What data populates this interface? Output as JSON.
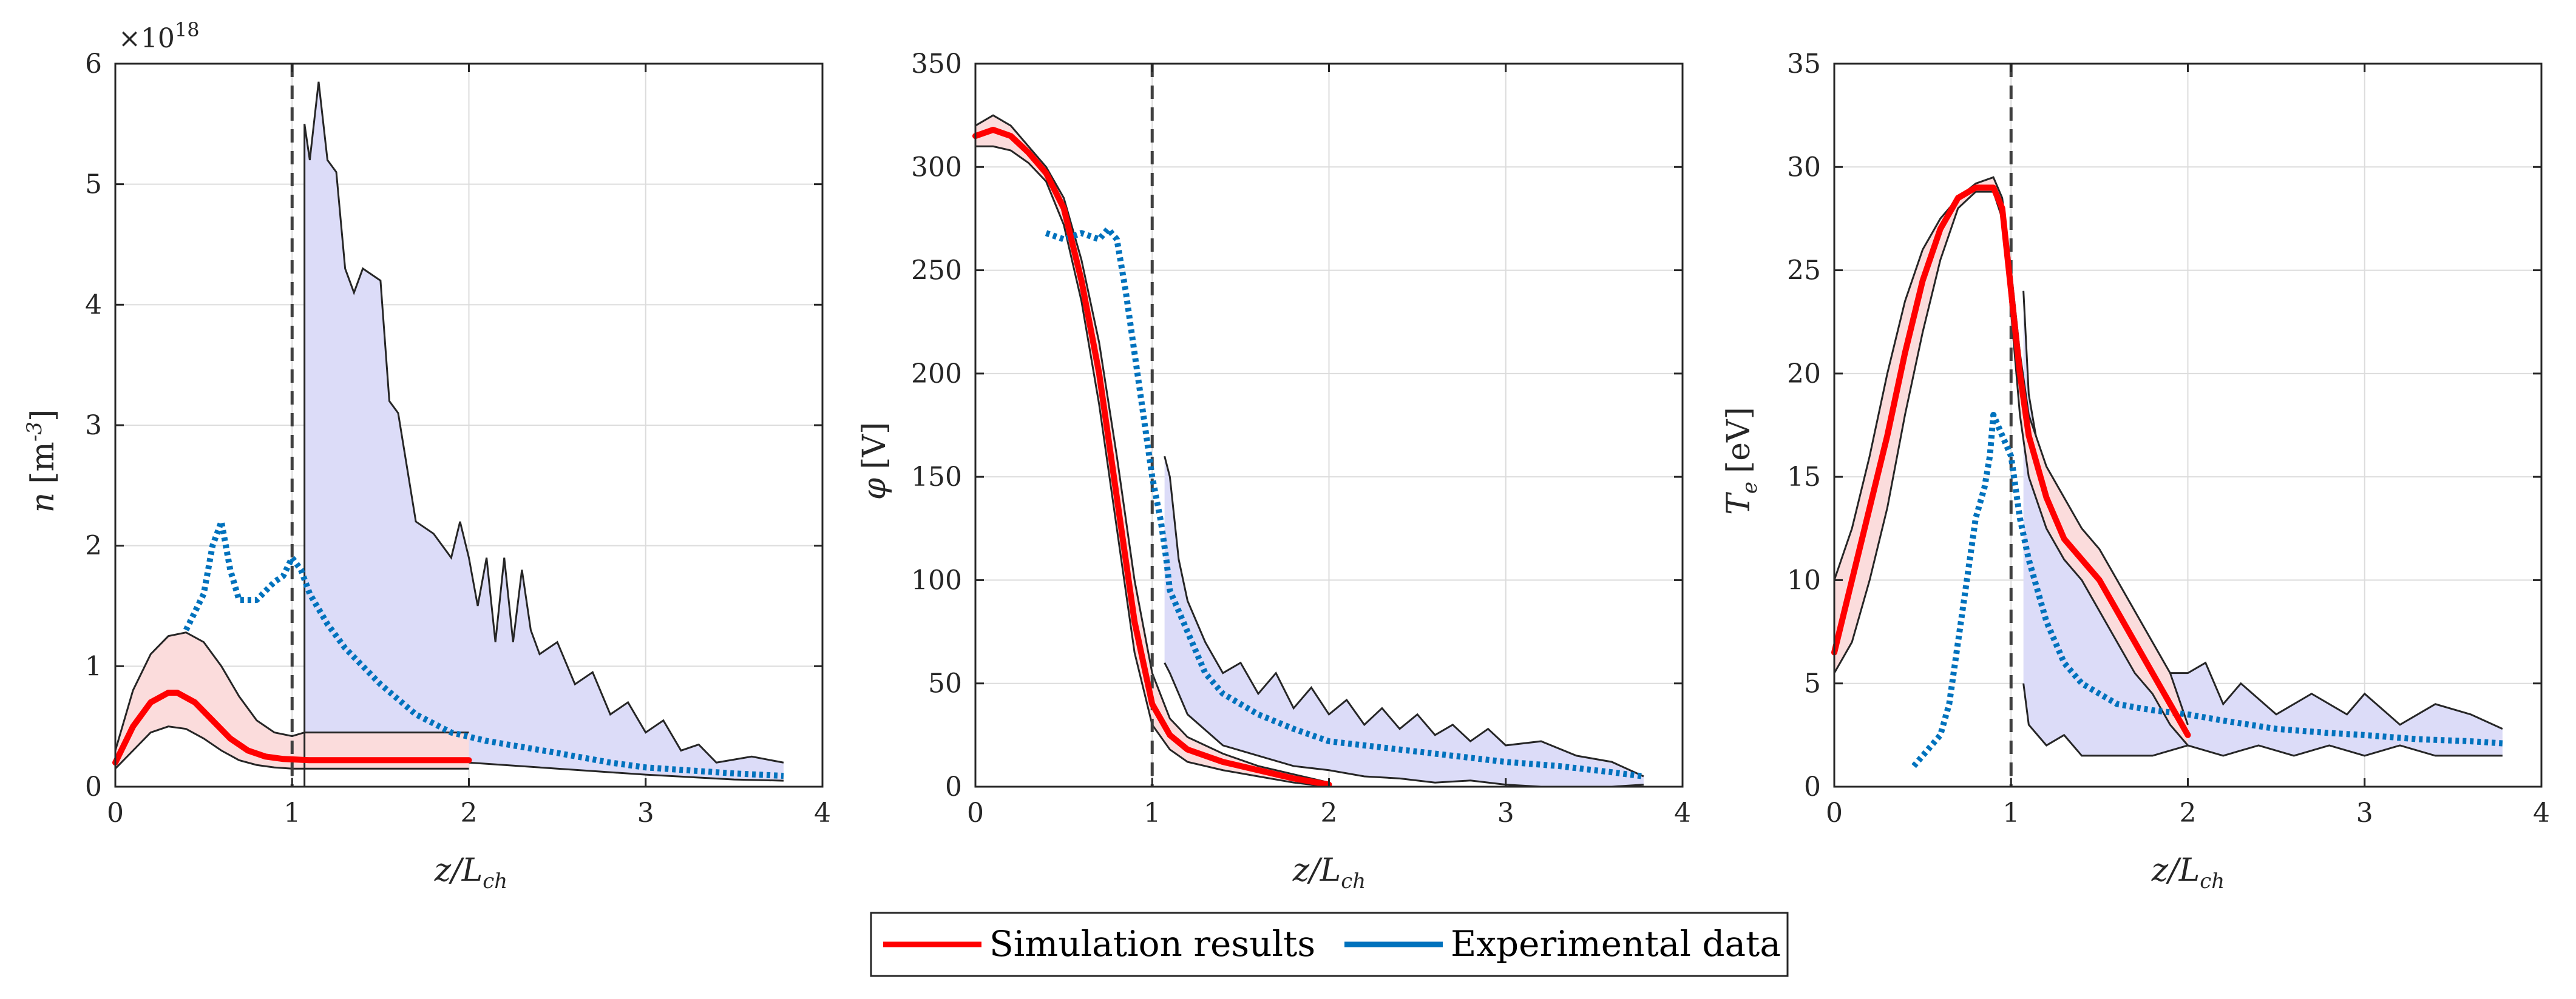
{
  "legend": {
    "sim_label": "Simulation results",
    "exp_label": "Experimental data"
  },
  "colors": {
    "sim": "#ff0000",
    "exp": "#0072bd",
    "sim_band": "#fbdcdc",
    "exp_band": "#dcdcf8",
    "vline": "#404040"
  },
  "chart_data": [
    {
      "type": "line",
      "ylabel_var": "n",
      "ylabel_unit": "[m",
      "ylabel_exp": "-3",
      "ylabel_close": "]",
      "xlabel": "z/L",
      "xlabel_sub": "ch",
      "exponent_prefix": "×10",
      "exponent_power": "18",
      "xlim": [
        0,
        4
      ],
      "ylim": [
        0,
        6
      ],
      "xticks": [
        0,
        1,
        2,
        3,
        4
      ],
      "yticks": [
        0,
        1,
        2,
        3,
        4,
        5,
        6
      ],
      "vline_x": 1,
      "exp_vline_x": 1.07,
      "series": [
        {
          "name": "Simulation results",
          "x": [
            0,
            0.1,
            0.2,
            0.3,
            0.35,
            0.45,
            0.55,
            0.65,
            0.75,
            0.85,
            0.95,
            1.1,
            1.3,
            1.5,
            1.7,
            2.0
          ],
          "y": [
            0.2,
            0.5,
            0.7,
            0.78,
            0.78,
            0.7,
            0.55,
            0.4,
            0.3,
            0.25,
            0.23,
            0.22,
            0.22,
            0.22,
            0.22,
            0.22
          ]
        },
        {
          "name": "Simulation band upper",
          "x": [
            0,
            0.1,
            0.2,
            0.3,
            0.4,
            0.5,
            0.6,
            0.7,
            0.8,
            0.9,
            1.0,
            1.07,
            1.5,
            2.0
          ],
          "y": [
            0.3,
            0.8,
            1.1,
            1.25,
            1.28,
            1.2,
            1.0,
            0.75,
            0.55,
            0.45,
            0.42,
            0.45,
            0.45,
            0.45
          ]
        },
        {
          "name": "Simulation band lower",
          "x": [
            0,
            0.1,
            0.2,
            0.3,
            0.4,
            0.5,
            0.6,
            0.7,
            0.8,
            0.9,
            1.0,
            1.5,
            2.0
          ],
          "y": [
            0.15,
            0.3,
            0.45,
            0.5,
            0.48,
            0.4,
            0.3,
            0.22,
            0.18,
            0.16,
            0.15,
            0.15,
            0.15
          ]
        },
        {
          "name": "Experimental data",
          "x": [
            0.4,
            0.5,
            0.55,
            0.6,
            0.65,
            0.7,
            0.8,
            0.9,
            0.95,
            1.0,
            1.05,
            1.1,
            1.2,
            1.3,
            1.5,
            1.7,
            1.9,
            2.1,
            2.3,
            2.5,
            2.8,
            3.0,
            3.3,
            3.5,
            3.78
          ],
          "y": [
            1.3,
            1.6,
            2.0,
            2.2,
            1.8,
            1.55,
            1.55,
            1.7,
            1.75,
            1.9,
            1.8,
            1.6,
            1.35,
            1.15,
            0.85,
            0.6,
            0.45,
            0.38,
            0.33,
            0.28,
            0.2,
            0.16,
            0.13,
            0.11,
            0.09
          ]
        },
        {
          "name": "Experimental band upper",
          "x": [
            1.07,
            1.1,
            1.15,
            1.2,
            1.25,
            1.3,
            1.35,
            1.4,
            1.5,
            1.55,
            1.6,
            1.7,
            1.8,
            1.9,
            1.95,
            2.0,
            2.05,
            2.1,
            2.15,
            2.2,
            2.25,
            2.3,
            2.35,
            2.4,
            2.5,
            2.6,
            2.7,
            2.8,
            2.9,
            3.0,
            3.1,
            3.2,
            3.3,
            3.4,
            3.6,
            3.78
          ],
          "y": [
            5.5,
            5.2,
            5.85,
            5.2,
            5.1,
            4.3,
            4.1,
            4.3,
            4.2,
            3.2,
            3.1,
            2.2,
            2.1,
            1.9,
            2.2,
            1.9,
            1.5,
            1.9,
            1.2,
            1.9,
            1.2,
            1.8,
            1.3,
            1.1,
            1.2,
            0.85,
            0.95,
            0.6,
            0.7,
            0.45,
            0.55,
            0.3,
            0.35,
            0.2,
            0.25,
            0.2
          ]
        },
        {
          "name": "Experimental band lower",
          "x": [
            1.07,
            1.5,
            2.0,
            2.5,
            3.0,
            3.5,
            3.78
          ],
          "y": [
            0.3,
            0.25,
            0.2,
            0.15,
            0.1,
            0.06,
            0.05
          ]
        }
      ]
    },
    {
      "type": "line",
      "ylabel_var": "φ",
      "ylabel_unit": "[V]",
      "xlabel": "z/L",
      "xlabel_sub": "ch",
      "xlim": [
        0,
        4
      ],
      "ylim": [
        0,
        350
      ],
      "xticks": [
        0,
        1,
        2,
        3,
        4
      ],
      "yticks": [
        0,
        50,
        100,
        150,
        200,
        250,
        300,
        350
      ],
      "vline_x": 1,
      "series": [
        {
          "name": "Simulation results",
          "x": [
            0,
            0.1,
            0.2,
            0.3,
            0.4,
            0.5,
            0.6,
            0.7,
            0.8,
            0.9,
            1.0,
            1.1,
            1.2,
            1.4,
            1.6,
            1.8,
            2.0
          ],
          "y": [
            315,
            318,
            315,
            307,
            297,
            280,
            245,
            200,
            140,
            80,
            40,
            25,
            18,
            12,
            8,
            4,
            1
          ]
        },
        {
          "name": "Simulation band upper",
          "x": [
            0,
            0.1,
            0.2,
            0.3,
            0.4,
            0.5,
            0.6,
            0.7,
            0.8,
            0.9,
            1.0,
            1.1,
            1.2,
            1.4,
            1.6,
            1.8,
            2.0
          ],
          "y": [
            320,
            325,
            320,
            310,
            300,
            285,
            255,
            215,
            160,
            100,
            55,
            33,
            24,
            16,
            10,
            6,
            2
          ]
        },
        {
          "name": "Simulation band lower",
          "x": [
            0,
            0.1,
            0.2,
            0.3,
            0.4,
            0.5,
            0.6,
            0.7,
            0.8,
            0.9,
            1.0,
            1.1,
            1.2,
            1.4,
            1.6,
            1.8,
            2.0
          ],
          "y": [
            310,
            310,
            308,
            302,
            293,
            272,
            235,
            185,
            125,
            65,
            30,
            18,
            12,
            8,
            5,
            2,
            0
          ]
        },
        {
          "name": "Experimental data",
          "x": [
            0.4,
            0.5,
            0.6,
            0.7,
            0.75,
            0.8,
            0.85,
            0.9,
            0.95,
            1.0,
            1.05,
            1.08,
            1.1,
            1.2,
            1.3,
            1.4,
            1.6,
            1.8,
            2.0,
            2.2,
            2.5,
            2.8,
            3.0,
            3.3,
            3.6,
            3.78
          ],
          "y": [
            268,
            265,
            268,
            265,
            270,
            265,
            240,
            210,
            180,
            150,
            128,
            110,
            95,
            75,
            55,
            45,
            35,
            28,
            22,
            20,
            17,
            14,
            12,
            10,
            7,
            5
          ]
        },
        {
          "name": "Experimental band upper",
          "x": [
            1.07,
            1.1,
            1.15,
            1.2,
            1.3,
            1.4,
            1.5,
            1.6,
            1.7,
            1.8,
            1.9,
            2.0,
            2.1,
            2.2,
            2.3,
            2.4,
            2.5,
            2.6,
            2.7,
            2.8,
            2.9,
            3.0,
            3.2,
            3.4,
            3.6,
            3.78
          ],
          "y": [
            160,
            150,
            110,
            90,
            70,
            55,
            60,
            45,
            55,
            38,
            48,
            35,
            42,
            30,
            38,
            28,
            35,
            25,
            30,
            22,
            28,
            20,
            22,
            15,
            12,
            5
          ]
        },
        {
          "name": "Experimental band lower",
          "x": [
            1.07,
            1.1,
            1.2,
            1.4,
            1.6,
            1.8,
            2.0,
            2.2,
            2.4,
            2.6,
            2.8,
            3.0,
            3.2,
            3.4,
            3.6,
            3.78
          ],
          "y": [
            60,
            55,
            35,
            20,
            15,
            10,
            8,
            5,
            4,
            2,
            3,
            1,
            0,
            0,
            0,
            1
          ]
        }
      ]
    },
    {
      "type": "line",
      "ylabel_var": "T",
      "ylabel_sub": "e",
      "ylabel_unit": "[eV]",
      "xlabel": "z/L",
      "xlabel_sub": "ch",
      "xlim": [
        0,
        4
      ],
      "ylim": [
        0,
        35
      ],
      "xticks": [
        0,
        1,
        2,
        3,
        4
      ],
      "yticks": [
        0,
        5,
        10,
        15,
        20,
        25,
        30,
        35
      ],
      "vline_x": 1,
      "series": [
        {
          "name": "Simulation results",
          "x": [
            0,
            0.1,
            0.2,
            0.3,
            0.4,
            0.5,
            0.6,
            0.7,
            0.8,
            0.9,
            0.95,
            1.0,
            1.05,
            1.1,
            1.2,
            1.3,
            1.4,
            1.5,
            1.6,
            1.7,
            1.8,
            1.9,
            2.0
          ],
          "y": [
            6.5,
            10,
            13.5,
            17,
            21,
            24.5,
            27,
            28.5,
            29,
            29,
            28,
            24,
            20,
            17,
            14,
            12,
            11,
            10,
            8.5,
            7,
            5.5,
            4,
            2.5
          ]
        },
        {
          "name": "Simulation band upper",
          "x": [
            0,
            0.1,
            0.2,
            0.3,
            0.4,
            0.5,
            0.6,
            0.7,
            0.8,
            0.9,
            0.95,
            1.0,
            1.05,
            1.1,
            1.2,
            1.3,
            1.4,
            1.5,
            1.6,
            1.7,
            1.8,
            1.9,
            2.0
          ],
          "y": [
            10,
            12.5,
            16,
            20,
            23.5,
            26,
            27.5,
            28.5,
            29.2,
            29.5,
            28.5,
            25,
            21,
            18,
            15.5,
            14,
            12.5,
            11.5,
            10,
            8.5,
            7,
            5.5,
            3
          ]
        },
        {
          "name": "Simulation band lower",
          "x": [
            0,
            0.1,
            0.2,
            0.3,
            0.4,
            0.5,
            0.6,
            0.7,
            0.8,
            0.9,
            0.95,
            1.0,
            1.05,
            1.1,
            1.2,
            1.3,
            1.4,
            1.5,
            1.6,
            1.7,
            1.8,
            1.9,
            2.0
          ],
          "y": [
            5.5,
            7,
            10,
            13.5,
            18,
            22,
            25.5,
            28,
            28.8,
            28.8,
            27.5,
            23,
            18,
            15,
            12.5,
            11,
            10,
            8.5,
            7,
            5.5,
            4.5,
            3,
            2
          ]
        },
        {
          "name": "Experimental data",
          "x": [
            0.45,
            0.5,
            0.55,
            0.6,
            0.65,
            0.7,
            0.75,
            0.8,
            0.85,
            0.88,
            0.9,
            0.95,
            1.0,
            1.05,
            1.1,
            1.2,
            1.3,
            1.4,
            1.6,
            1.8,
            2.0,
            2.2,
            2.5,
            2.8,
            3.0,
            3.3,
            3.6,
            3.78
          ],
          "y": [
            1,
            1.5,
            2,
            2.5,
            4,
            7,
            10,
            13,
            14.5,
            16,
            18,
            17,
            16,
            13,
            11,
            8,
            6,
            5,
            4,
            3.7,
            3.5,
            3.2,
            2.8,
            2.6,
            2.5,
            2.3,
            2.2,
            2.1
          ]
        },
        {
          "name": "Experimental band upper",
          "x": [
            1.07,
            1.1,
            1.15,
            1.2,
            1.3,
            1.4,
            1.5,
            1.6,
            1.7,
            1.8,
            1.9,
            2.0,
            2.1,
            2.2,
            2.3,
            2.5,
            2.7,
            2.9,
            3.0,
            3.2,
            3.4,
            3.6,
            3.78
          ],
          "y": [
            24,
            19,
            16.5,
            15,
            12.5,
            10.5,
            9.5,
            8.5,
            7,
            6,
            5.5,
            5.5,
            6,
            4,
            5,
            3.5,
            4.5,
            3.5,
            4.5,
            3,
            4,
            3.5,
            2.8
          ]
        },
        {
          "name": "Experimental band lower",
          "x": [
            1.07,
            1.1,
            1.2,
            1.3,
            1.4,
            1.6,
            1.8,
            2.0,
            2.2,
            2.4,
            2.6,
            2.8,
            3.0,
            3.2,
            3.4,
            3.6,
            3.78
          ],
          "y": [
            5,
            3,
            2,
            2.5,
            1.5,
            1.5,
            1.5,
            2,
            1.5,
            2,
            1.5,
            2,
            1.5,
            2,
            1.5,
            1.5,
            1.5
          ]
        }
      ]
    }
  ]
}
